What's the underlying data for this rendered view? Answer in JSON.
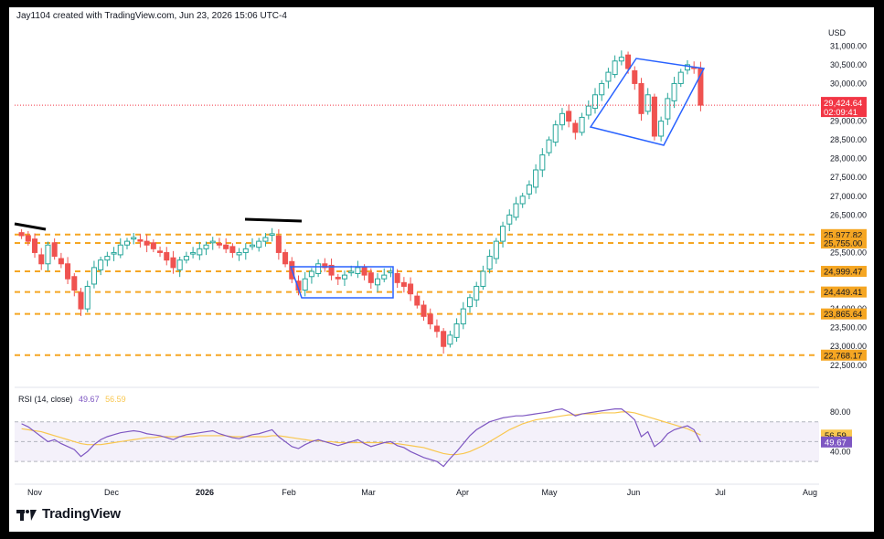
{
  "header": {
    "attribution": "Jay1104 created with TradingView.com, Jun 23, 2026 15:06 UTC-4"
  },
  "price_axis": {
    "currency": "USD"
  },
  "footer": {
    "brand": "TradingView"
  },
  "rsi": {
    "label": "RSI (14, close)",
    "value": "49.67",
    "ma_value": "56.59"
  },
  "colors": {
    "up": "#26a69a",
    "down": "#ef5350",
    "level": "#f5a623",
    "pattern": "#2962ff",
    "rsi": "#7e57c2",
    "rsi_ma": "#f9c74f",
    "price_label": "#f23645"
  },
  "chart_data": {
    "type": "candlestick",
    "x_labels": [
      "Nov",
      "Dec",
      "2026",
      "Feb",
      "Mar",
      "Apr",
      "May",
      "Jun",
      "Jul",
      "Aug"
    ],
    "y_ticks": [
      22500,
      23000,
      23500,
      24000,
      24500,
      25000,
      25500,
      26000,
      26500,
      27000,
      27500,
      28000,
      28500,
      29000,
      29500,
      30000,
      30500,
      31000
    ],
    "ylim": [
      22300,
      31300
    ],
    "support_resistance_levels": [
      "25,977.82",
      "25,755.00",
      "24,999.47",
      "24,449.41",
      "23,865.64",
      "22,768.17"
    ],
    "level_values": [
      25977.82,
      25755.0,
      24999.47,
      24449.41,
      23865.64,
      22768.17
    ],
    "last_price": "29,424.64",
    "last_price_value": 29424.64,
    "countdown": "02:09:41",
    "series": [
      {
        "name": "close",
        "values": [
          25950,
          25800,
          25500,
          25200,
          25700,
          25400,
          25200,
          24800,
          24500,
          24000,
          24600,
          25100,
          25300,
          25400,
          25500,
          25700,
          25800,
          25900,
          25800,
          25700,
          25600,
          25500,
          25300,
          25100,
          25300,
          25400,
          25500,
          25600,
          25700,
          25800,
          25700,
          25600,
          25500,
          25500,
          25600,
          25700,
          25800,
          25900,
          26000,
          25500,
          25200,
          24800,
          24500,
          24800,
          25000,
          25200,
          25100,
          24900,
          24800,
          24900,
          25000,
          25100,
          24900,
          24700,
          24800,
          24900,
          25000,
          24700,
          24600,
          24400,
          24100,
          23800,
          23600,
          23400,
          23000,
          23300,
          23600,
          24000,
          24300,
          24600,
          25000,
          25400,
          25800,
          26200,
          26500,
          26800,
          27000,
          27300,
          27700,
          28100,
          28500,
          28900,
          29200,
          29000,
          28700,
          29100,
          29400,
          29700,
          30000,
          30300,
          30600,
          30700,
          30400,
          30000,
          29200,
          29700,
          28600,
          29000,
          29600,
          30000,
          30300,
          30500,
          30400,
          29424.64
        ]
      },
      {
        "name": "RSI (14, close)",
        "values": [
          68,
          65,
          60,
          55,
          50,
          52,
          48,
          45,
          42,
          35,
          40,
          47,
          52,
          55,
          57,
          59,
          60,
          61,
          60,
          58,
          57,
          56,
          54,
          52,
          55,
          57,
          58,
          59,
          60,
          61,
          58,
          56,
          54,
          53,
          55,
          57,
          58,
          60,
          62,
          55,
          50,
          45,
          43,
          47,
          50,
          52,
          50,
          48,
          46,
          48,
          50,
          52,
          48,
          45,
          47,
          49,
          50,
          46,
          44,
          40,
          37,
          34,
          32,
          30,
          25,
          33,
          40,
          48,
          56,
          62,
          66,
          70,
          72,
          74,
          75,
          76,
          76,
          77,
          78,
          79,
          80,
          82,
          83,
          80,
          76,
          78,
          79,
          80,
          81,
          82,
          83,
          83,
          78,
          72,
          55,
          60,
          45,
          50,
          58,
          62,
          64,
          66,
          62,
          49.67
        ]
      },
      {
        "name": "RSI MA",
        "values": [
          63,
          62,
          61,
          60,
          58,
          56,
          54,
          52,
          50,
          48,
          47,
          47,
          47,
          48,
          49,
          50,
          51,
          52,
          53,
          54,
          54,
          55,
          55,
          55,
          55,
          55,
          55,
          56,
          56,
          56,
          56,
          56,
          55,
          55,
          55,
          55,
          55,
          55,
          56,
          56,
          55,
          54,
          53,
          52,
          51,
          51,
          50,
          50,
          49,
          49,
          49,
          49,
          49,
          49,
          49,
          49,
          48,
          48,
          47,
          46,
          45,
          44,
          42,
          40,
          38,
          37,
          37,
          38,
          40,
          43,
          46,
          50,
          54,
          58,
          62,
          65,
          68,
          70,
          72,
          73,
          74,
          75,
          76,
          77,
          77,
          78,
          78,
          78,
          79,
          79,
          79,
          80,
          80,
          79,
          77,
          75,
          73,
          71,
          69,
          67,
          65,
          63,
          60,
          56.59
        ]
      }
    ],
    "rsi_ylim": [
      20,
      90
    ],
    "rsi_ticks": [
      "80.00",
      "40.00"
    ],
    "rsi_tick_values": [
      80,
      40
    ]
  }
}
